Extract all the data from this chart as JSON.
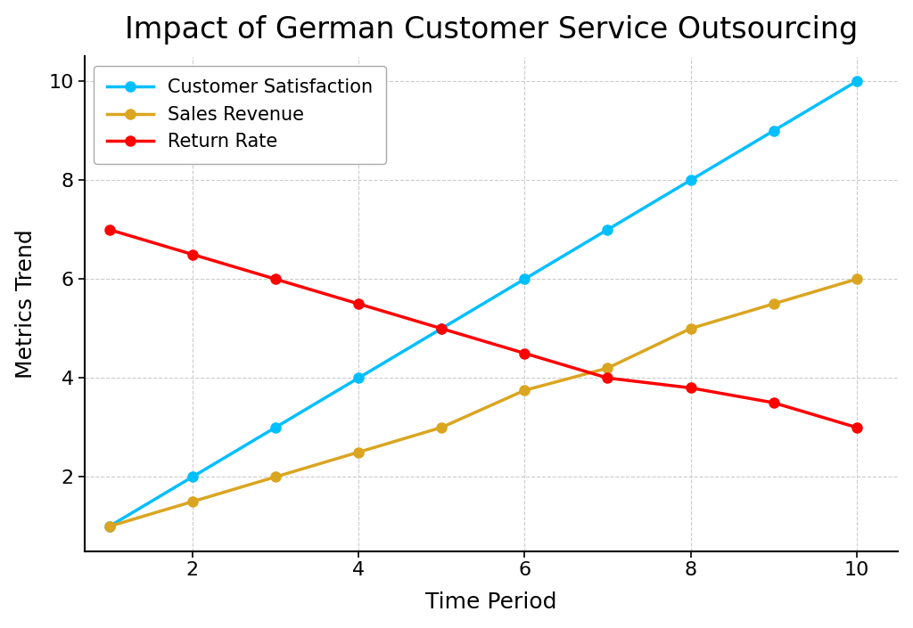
{
  "title": "Impact of German Customer Service Outsourcing",
  "xlabel": "Time Period",
  "ylabel": "Metrics Trend",
  "x": [
    1,
    2,
    3,
    4,
    5,
    6,
    7,
    8,
    9,
    10
  ],
  "customer_satisfaction": [
    1,
    2,
    3,
    4,
    5,
    6,
    7,
    8,
    9,
    10
  ],
  "sales_revenue": [
    1,
    1.5,
    2.0,
    2.5,
    3.0,
    3.75,
    4.2,
    5.0,
    5.5,
    6.0
  ],
  "return_rate": [
    7,
    6.5,
    6.0,
    5.5,
    5.0,
    4.5,
    4.0,
    3.8,
    3.5,
    3.0
  ],
  "cs_color": "#00BFFF",
  "sr_color": "#DAA520",
  "rr_color": "#FF0000",
  "cs_label": "Customer Satisfaction",
  "sr_label": "Sales Revenue",
  "rr_label": "Return Rate",
  "background_color": "#FFFFFF",
  "grid_color": "#CCCCCC",
  "title_fontsize": 24,
  "label_fontsize": 18,
  "tick_fontsize": 16,
  "legend_fontsize": 15,
  "line_width": 2.5,
  "marker_size": 8,
  "ylim": [
    0.5,
    10.5
  ],
  "xlim": [
    0.7,
    10.5
  ],
  "yticks": [
    2,
    4,
    6,
    8,
    10
  ],
  "xticks": [
    2,
    4,
    6,
    8,
    10
  ]
}
